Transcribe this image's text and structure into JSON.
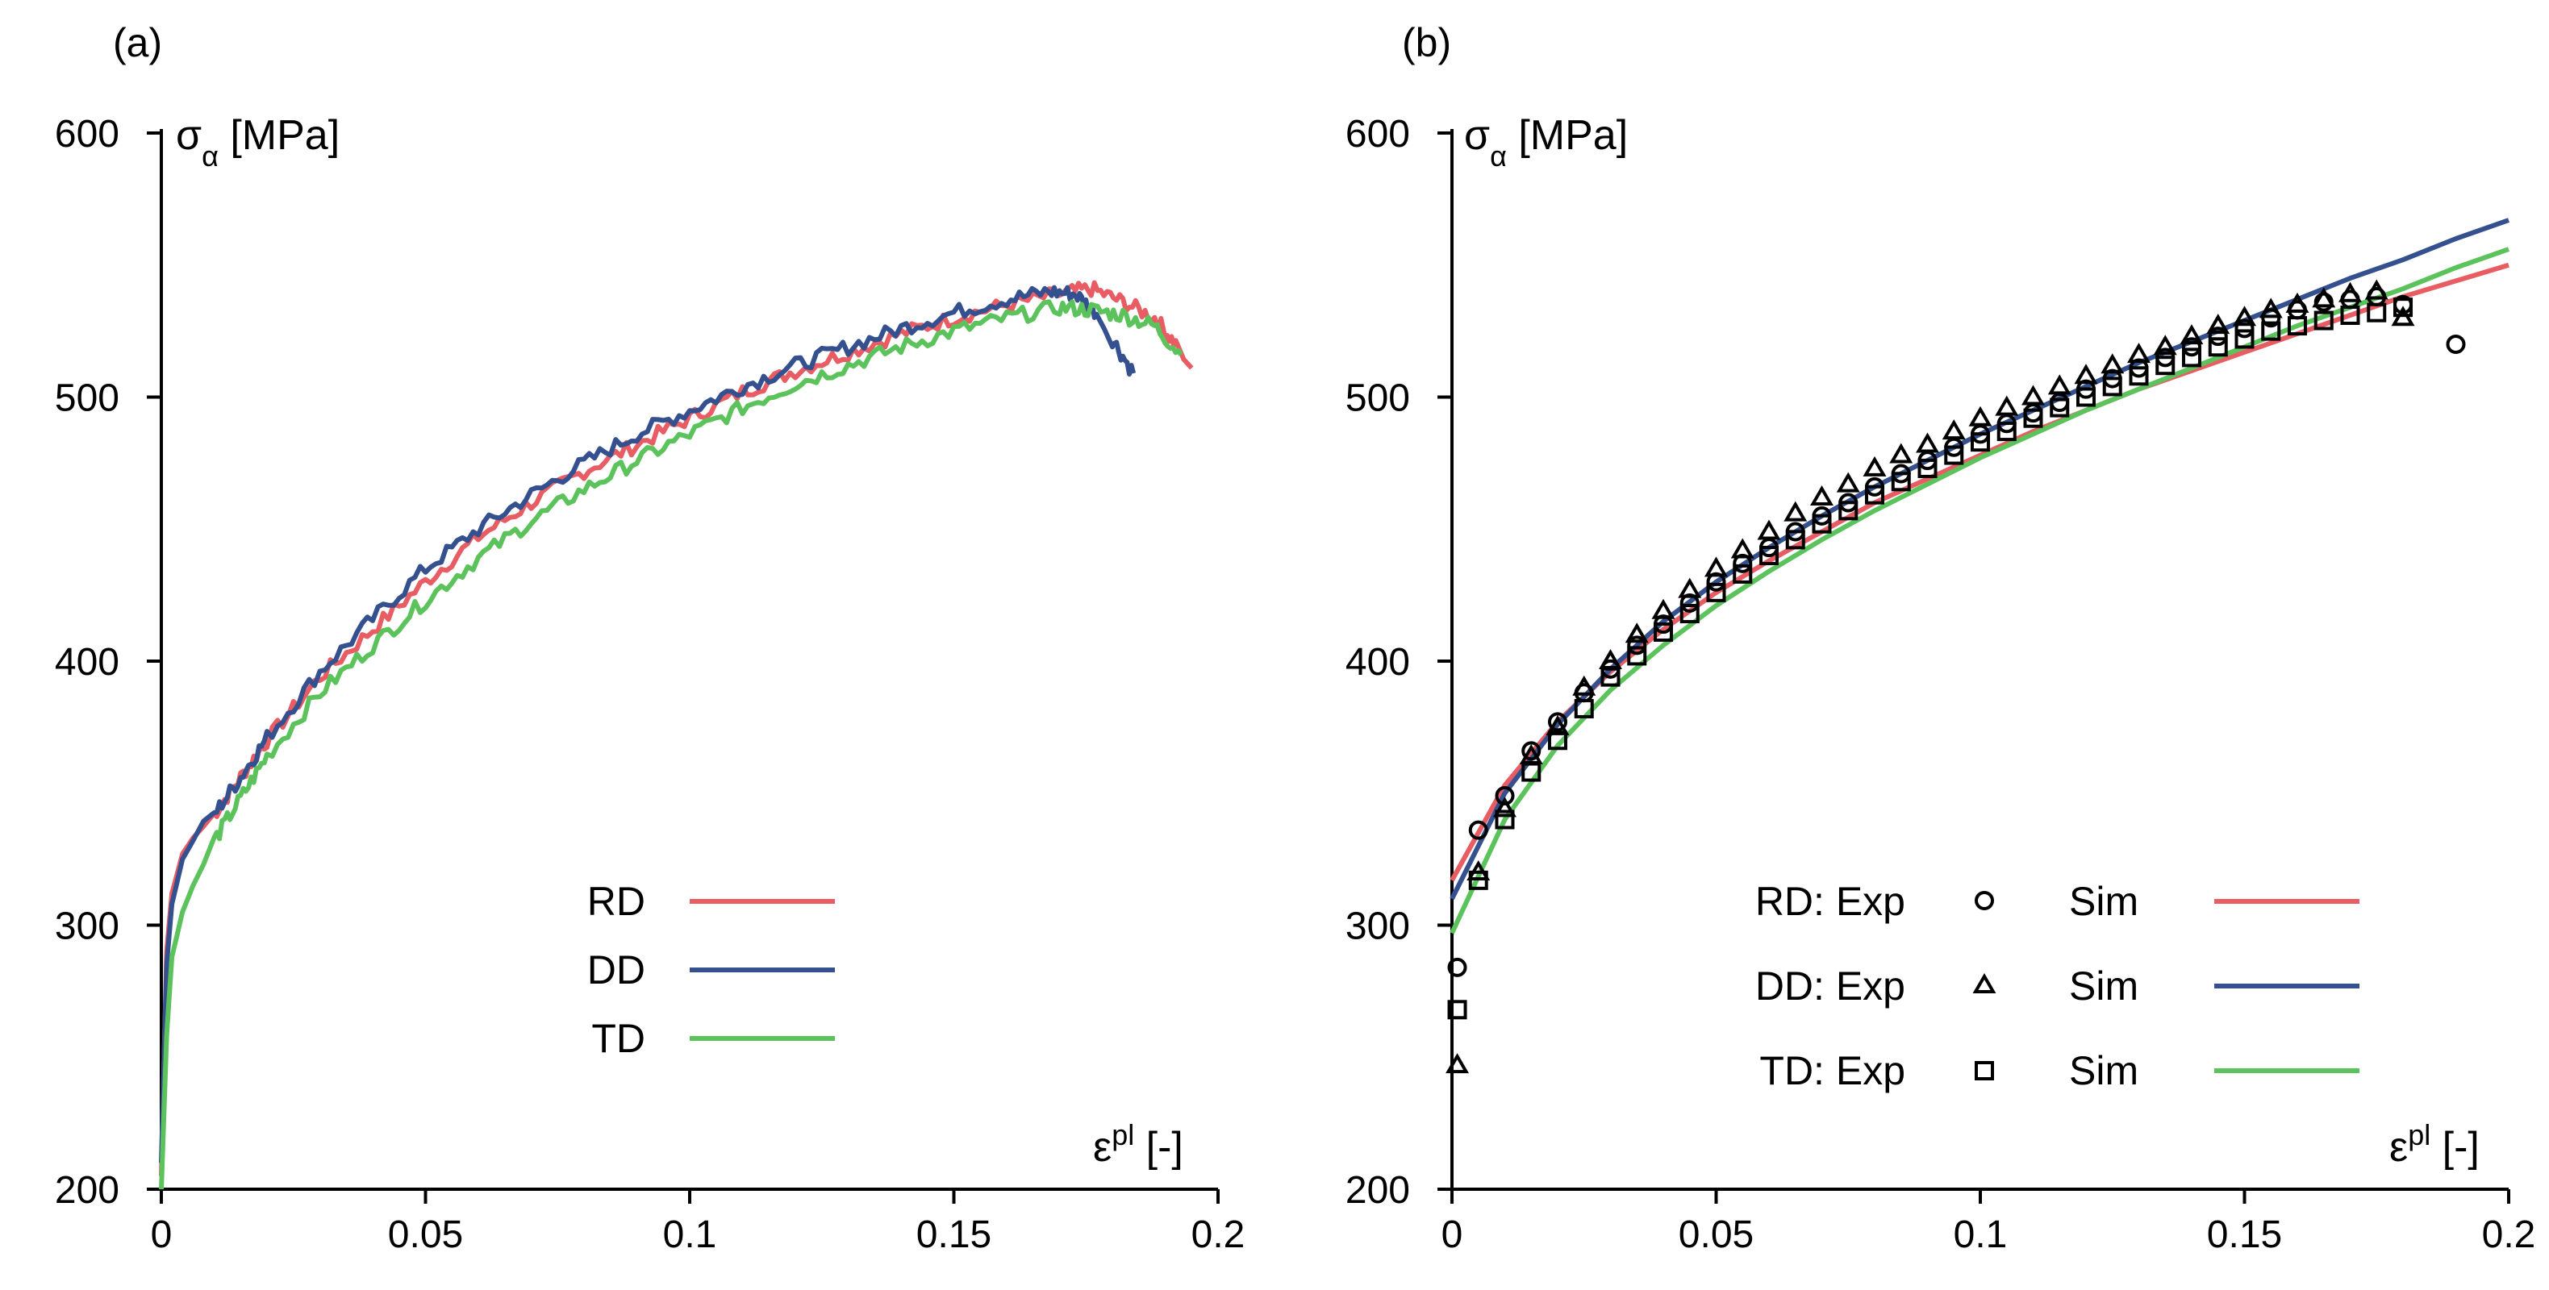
{
  "figure": {
    "panels": [
      "(a)",
      "(b)"
    ],
    "axis_labels": {
      "y_main": "σ",
      "y_sub": "α",
      "y_unit": " [MPa]",
      "x_main": "ε",
      "x_sup": "pl",
      "x_unit": " [-]"
    }
  },
  "colors": {
    "RD": "#e85c63",
    "DD": "#34508e",
    "TD": "#5cc35c"
  },
  "chart_data": [
    {
      "type": "line",
      "panel": "(a)",
      "title": "",
      "xlabel": "ε^pl [-]",
      "ylabel": "σα [MPa]",
      "xlim": [
        0,
        0.2
      ],
      "ylim": [
        200,
        600
      ],
      "xticks": [
        0,
        0.05,
        0.1,
        0.15,
        0.2
      ],
      "xtick_labels": [
        "0",
        "0.05",
        "0.1",
        "0.15",
        "0.2"
      ],
      "yticks": [
        200,
        300,
        400,
        500,
        600
      ],
      "ytick_labels": [
        "200",
        "300",
        "400",
        "500",
        "600"
      ],
      "legend": [
        "RD",
        "DD",
        "TD"
      ],
      "legend_position": "lower-center",
      "series": [
        {
          "name": "RD",
          "x": [
            0,
            0.001,
            0.002,
            0.004,
            0.006,
            0.01,
            0.015,
            0.02,
            0.03,
            0.04,
            0.05,
            0.06,
            0.07,
            0.08,
            0.09,
            0.1,
            0.11,
            0.12,
            0.13,
            0.14,
            0.15,
            0.16,
            0.17,
            0.176,
            0.182,
            0.188,
            0.192,
            0.195
          ],
          "y": [
            205,
            290,
            312,
            327,
            333,
            342,
            356,
            370,
            394,
            412,
            430,
            447,
            460,
            472,
            482,
            492,
            502,
            510,
            517,
            524,
            530,
            535,
            539,
            541,
            536,
            530,
            520,
            511
          ]
        },
        {
          "name": "DD",
          "x": [
            0,
            0.001,
            0.002,
            0.004,
            0.006,
            0.01,
            0.015,
            0.02,
            0.03,
            0.04,
            0.05,
            0.06,
            0.07,
            0.08,
            0.09,
            0.1,
            0.11,
            0.12,
            0.13,
            0.14,
            0.15,
            0.16,
            0.168,
            0.173,
            0.177,
            0.18,
            0.184
          ],
          "y": [
            210,
            285,
            308,
            325,
            332,
            342,
            356,
            371,
            396,
            416,
            435,
            450,
            463,
            475,
            486,
            495,
            504,
            512,
            519,
            526,
            532,
            537,
            540,
            539,
            532,
            522,
            509
          ]
        },
        {
          "name": "TD",
          "x": [
            0,
            0.001,
            0.002,
            0.004,
            0.006,
            0.01,
            0.015,
            0.02,
            0.03,
            0.04,
            0.05,
            0.06,
            0.07,
            0.08,
            0.09,
            0.1,
            0.11,
            0.12,
            0.13,
            0.14,
            0.15,
            0.16,
            0.17,
            0.176,
            0.182,
            0.188,
            0.193
          ],
          "y": [
            200,
            258,
            288,
            305,
            315,
            332,
            348,
            364,
            388,
            406,
            423,
            439,
            453,
            465,
            476,
            486,
            496,
            505,
            512,
            519,
            525,
            530,
            534,
            533,
            531,
            527,
            516
          ]
        }
      ]
    },
    {
      "type": "line",
      "panel": "(b)",
      "title": "",
      "xlabel": "ε^pl [-]",
      "ylabel": "σα [MPa]",
      "xlim": [
        0,
        0.2
      ],
      "ylim": [
        200,
        600
      ],
      "xticks": [
        0,
        0.05,
        0.1,
        0.15,
        0.2
      ],
      "xtick_labels": [
        "0",
        "0.05",
        "0.1",
        "0.15",
        "0.2"
      ],
      "yticks": [
        200,
        300,
        400,
        500,
        600
      ],
      "ytick_labels": [
        "200",
        "300",
        "400",
        "500",
        "600"
      ],
      "legend": [
        {
          "label": "RD: Exp",
          "marker": "circle",
          "sim": "Sim",
          "series": "RD"
        },
        {
          "label": "DD: Exp",
          "marker": "triangle",
          "sim": "Sim",
          "series": "DD"
        },
        {
          "label": "TD: Exp",
          "marker": "square",
          "sim": "Sim",
          "series": "TD"
        }
      ],
      "legend_position": "lower-right",
      "series": [
        {
          "name": "RD Sim",
          "x": [
            0,
            0.01,
            0.02,
            0.03,
            0.04,
            0.05,
            0.06,
            0.07,
            0.08,
            0.09,
            0.1,
            0.11,
            0.12,
            0.13,
            0.14,
            0.15,
            0.16,
            0.17,
            0.18,
            0.19,
            0.2
          ],
          "y": [
            317,
            353,
            377,
            396,
            412,
            426,
            438,
            449,
            460,
            469,
            478,
            487,
            495,
            503,
            510,
            517,
            524,
            531,
            538,
            544,
            550
          ]
        },
        {
          "name": "DD Sim",
          "x": [
            0,
            0.01,
            0.02,
            0.03,
            0.04,
            0.05,
            0.06,
            0.07,
            0.08,
            0.09,
            0.1,
            0.11,
            0.12,
            0.13,
            0.14,
            0.15,
            0.16,
            0.17,
            0.18,
            0.19,
            0.2
          ],
          "y": [
            310,
            350,
            376,
            397,
            415,
            430,
            443,
            455,
            466,
            476,
            486,
            495,
            504,
            513,
            521,
            529,
            537,
            545,
            552,
            560,
            567
          ]
        },
        {
          "name": "TD Sim",
          "x": [
            0,
            0.01,
            0.02,
            0.03,
            0.04,
            0.05,
            0.06,
            0.07,
            0.08,
            0.09,
            0.1,
            0.11,
            0.12,
            0.13,
            0.14,
            0.15,
            0.16,
            0.17,
            0.18,
            0.19,
            0.2
          ],
          "y": [
            297,
            340,
            368,
            389,
            406,
            421,
            434,
            446,
            457,
            467,
            477,
            486,
            495,
            503,
            511,
            519,
            527,
            534,
            541,
            549,
            556
          ]
        },
        {
          "name": "RD Exp",
          "marker": "circle",
          "x": [
            0.001,
            0.005,
            0.01,
            0.015,
            0.02,
            0.025,
            0.03,
            0.035,
            0.04,
            0.045,
            0.05,
            0.055,
            0.06,
            0.065,
            0.07,
            0.075,
            0.08,
            0.085,
            0.09,
            0.095,
            0.1,
            0.105,
            0.11,
            0.115,
            0.12,
            0.125,
            0.13,
            0.135,
            0.14,
            0.145,
            0.15,
            0.155,
            0.16,
            0.165,
            0.17,
            0.175,
            0.18,
            0.19
          ],
          "y": [
            284,
            336,
            349,
            366,
            377,
            388,
            397,
            406,
            414,
            422,
            430,
            437,
            443,
            449,
            455,
            460,
            466,
            471,
            476,
            481,
            486,
            490,
            494,
            498,
            503,
            507,
            511,
            515,
            519,
            523,
            526,
            530,
            533,
            536,
            537,
            538,
            535,
            520
          ]
        },
        {
          "name": "DD Exp",
          "marker": "triangle",
          "x": [
            0.001,
            0.005,
            0.01,
            0.015,
            0.02,
            0.025,
            0.03,
            0.035,
            0.04,
            0.045,
            0.05,
            0.055,
            0.06,
            0.065,
            0.07,
            0.075,
            0.08,
            0.085,
            0.09,
            0.095,
            0.1,
            0.105,
            0.11,
            0.115,
            0.12,
            0.125,
            0.13,
            0.135,
            0.14,
            0.145,
            0.15,
            0.155,
            0.16,
            0.165,
            0.17,
            0.175,
            0.18
          ],
          "y": [
            247,
            320,
            344,
            364,
            375,
            390,
            400,
            410,
            419,
            427,
            435,
            442,
            449,
            456,
            462,
            467,
            473,
            478,
            482,
            487,
            492,
            496,
            500,
            504,
            508,
            512,
            516,
            519,
            523,
            527,
            530,
            533,
            535,
            537,
            539,
            540,
            530
          ]
        },
        {
          "name": "TD Exp",
          "marker": "square",
          "x": [
            0.001,
            0.005,
            0.01,
            0.015,
            0.02,
            0.025,
            0.03,
            0.035,
            0.04,
            0.045,
            0.05,
            0.055,
            0.06,
            0.065,
            0.07,
            0.075,
            0.08,
            0.085,
            0.09,
            0.095,
            0.1,
            0.105,
            0.11,
            0.115,
            0.12,
            0.125,
            0.13,
            0.135,
            0.14,
            0.145,
            0.15,
            0.155,
            0.16,
            0.165,
            0.17,
            0.175,
            0.18
          ],
          "y": [
            268,
            317,
            340,
            358,
            370,
            382,
            394,
            402,
            411,
            418,
            426,
            433,
            440,
            446,
            452,
            457,
            463,
            468,
            473,
            478,
            483,
            487,
            492,
            496,
            500,
            504,
            508,
            512,
            515,
            519,
            522,
            525,
            527,
            529,
            531,
            532,
            534
          ]
        }
      ]
    }
  ]
}
